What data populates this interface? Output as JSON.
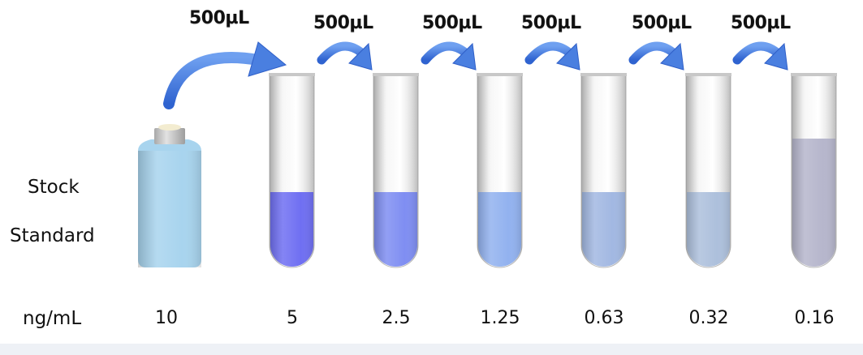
{
  "transfer_label": "500µL",
  "stock_label_line1": "Stock",
  "stock_label_line2": "Standard",
  "unit_label": "ng/mL",
  "stock": {
    "concentration": "10",
    "liquid_color": "#a8d4ee"
  },
  "tubes": [
    {
      "concentration": "5",
      "liquid_color": "#6f6ff2"
    },
    {
      "concentration": "2.5",
      "liquid_color": "#7f8ef2"
    },
    {
      "concentration": "1.25",
      "liquid_color": "#92b2ef"
    },
    {
      "concentration": "0.63",
      "liquid_color": "#a2b8e2"
    },
    {
      "concentration": "0.32",
      "liquid_color": "#adc0dc"
    },
    {
      "concentration": "0.16",
      "liquid_color": "#b6b6cc"
    }
  ],
  "arrow_color": "#4a7fe0"
}
